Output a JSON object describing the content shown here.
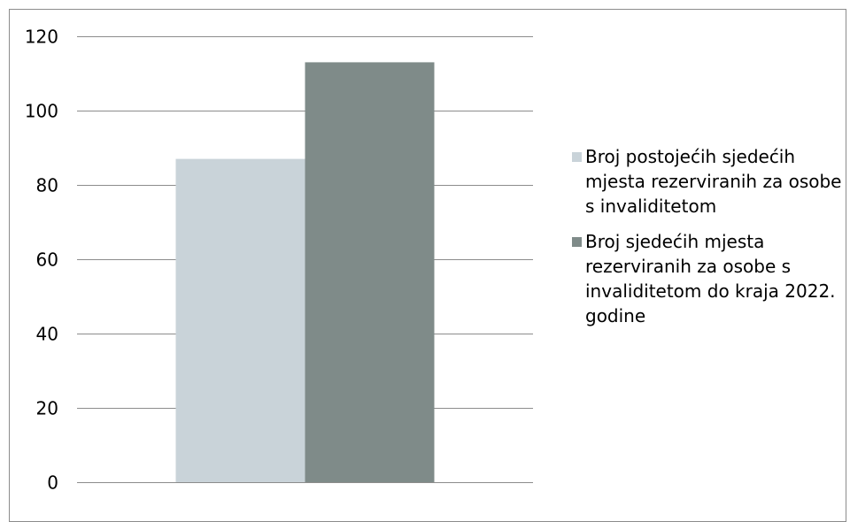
{
  "chart_data": {
    "type": "bar",
    "categories": [
      ""
    ],
    "series": [
      {
        "name": "Broj postojećih sjedećih mjesta rezerviranih za osobe s invaliditetom",
        "values": [
          87
        ],
        "color": "#c9d3d9"
      },
      {
        "name": "Broj sjedećih mjesta rezerviranih za osobe s invaliditetom do kraja 2022. godine",
        "values": [
          113
        ],
        "color": "#7f8b89"
      }
    ],
    "title": "",
    "xlabel": "",
    "ylabel": "",
    "ylim": [
      0,
      120
    ],
    "yticks": [
      0,
      20,
      40,
      60,
      80,
      100,
      120
    ],
    "grid": true,
    "legend_position": "right"
  }
}
